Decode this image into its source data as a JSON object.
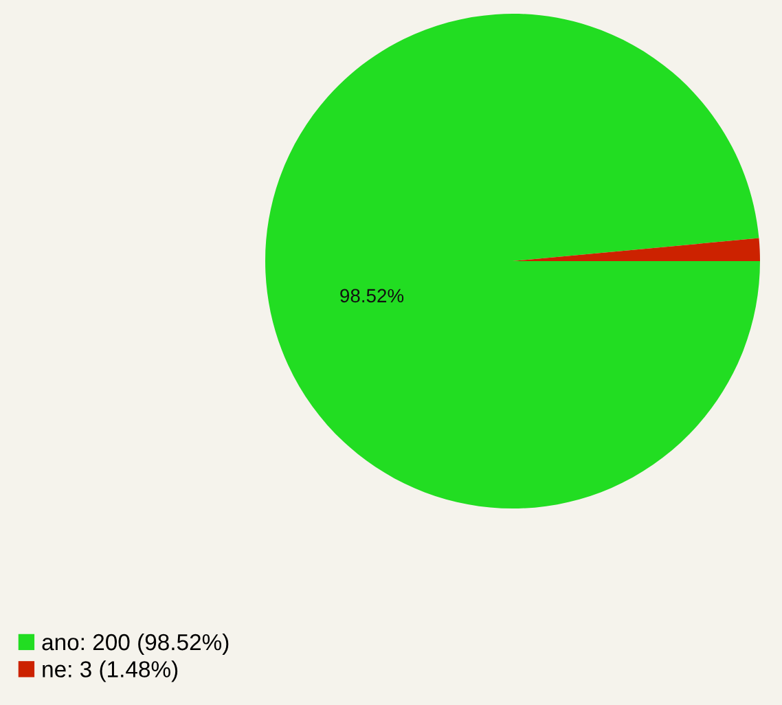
{
  "chart_data": {
    "type": "pie",
    "categories": [
      "ano: 200 (98.52%)",
      "ne: 3 (1.48%)"
    ],
    "values": [
      98.52,
      1.48
    ],
    "colors": [
      "#22dd22",
      "#cc2200"
    ],
    "value_labels": [
      "98.52%",
      null
    ],
    "legend": "bottom left"
  }
}
